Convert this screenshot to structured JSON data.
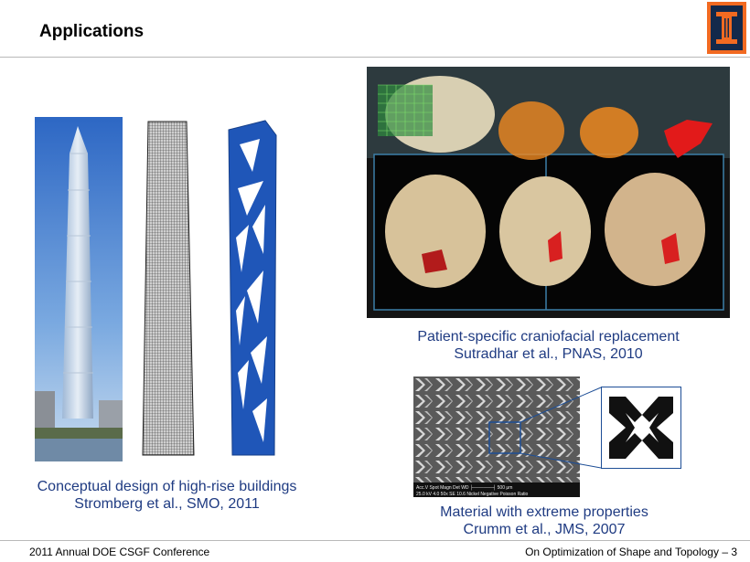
{
  "slide": {
    "title": "Applications"
  },
  "logo": {
    "letter": "I"
  },
  "captions": {
    "buildings": [
      "Conceptual design of high-rise buildings",
      "Stromberg et al., SMO, 2011"
    ],
    "craniofacial": [
      "Patient-specific craniofacial replacement",
      "Sutradhar et al., PNAS, 2010"
    ],
    "material": [
      "Material with extreme properties",
      "Crumm et al., JMS, 2007"
    ]
  },
  "sem_labels": {
    "row1": "Acc.V   Spot Magn   Det  WD  ├──────┤ 500 μm",
    "row2": "25.0 kV 4.0   50x   SE  10.6  Nickel Negative Poisson Ratio"
  },
  "footer": {
    "left": "2011 Annual DOE CSGF Conference",
    "right": "On Optimization of Shape and Topology – 3"
  },
  "colors": {
    "caption": "#1f3b82",
    "logo_orange": "#f26a21",
    "logo_navy": "#13294b"
  }
}
